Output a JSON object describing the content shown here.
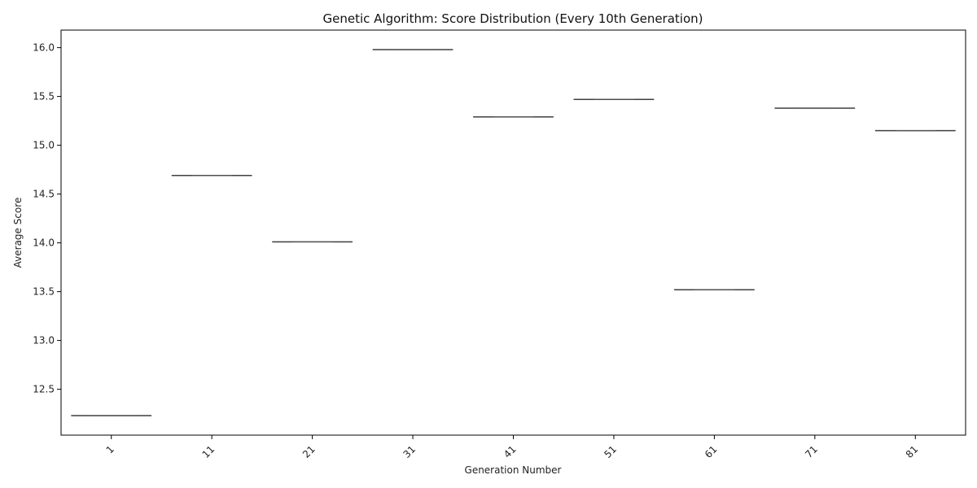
{
  "chart_data": {
    "type": "box",
    "title": "Genetic Algorithm: Score Distribution (Every 10th Generation)",
    "xlabel": "Generation Number",
    "ylabel": "Average Score",
    "categories": [
      "1",
      "11",
      "21",
      "31",
      "41",
      "51",
      "61",
      "71",
      "81"
    ],
    "values": [
      12.23,
      14.69,
      14.01,
      15.98,
      15.29,
      15.47,
      13.52,
      15.38,
      15.15
    ],
    "ylim": [
      12.03,
      16.18
    ],
    "yticks": [
      12.5,
      13.0,
      13.5,
      14.0,
      14.5,
      15.0,
      15.5,
      16.0
    ],
    "ytick_labels": [
      "12.5",
      "13.0",
      "13.5",
      "14.0",
      "14.5",
      "15.0",
      "15.5",
      "16.0"
    ],
    "x_tick_rotation_deg": -45,
    "grid": false,
    "colors": {
      "box_line": "#3f3f3f",
      "axis": "#000000",
      "text": "#222222"
    }
  }
}
